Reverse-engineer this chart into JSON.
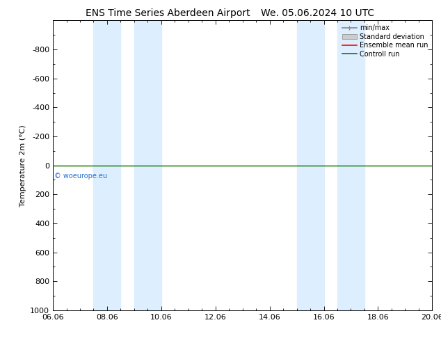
{
  "title_left": "ENS Time Series Aberdeen Airport",
  "title_right": "We. 05.06.2024 10 UTC",
  "ylabel": "Temperature 2m (°C)",
  "ylim_bottom": -1000,
  "ylim_top": 1000,
  "yticks": [
    -800,
    -600,
    -400,
    -200,
    0,
    200,
    400,
    600,
    800,
    1000
  ],
  "xtick_labels": [
    "06.06",
    "08.06",
    "10.06",
    "12.06",
    "14.06",
    "16.06",
    "18.06",
    "20.06"
  ],
  "xtick_positions": [
    0,
    2,
    4,
    6,
    8,
    10,
    12,
    14
  ],
  "blue_bands": [
    [
      1.5,
      2.5
    ],
    [
      3.0,
      4.0
    ],
    [
      9.0,
      10.0
    ],
    [
      10.5,
      11.5
    ]
  ],
  "green_line_y": 0,
  "red_line_y": 0,
  "watermark": "© woeurope.eu",
  "legend_labels": [
    "min/max",
    "Standard deviation",
    "Ensemble mean run",
    "Controll run"
  ],
  "bg_color": "#ffffff",
  "plot_bg": "#ffffff",
  "green_line_color": "#008000",
  "red_line_color": "#ff0000",
  "band_color": "#ddeeff",
  "title_fontsize": 10,
  "axis_fontsize": 8,
  "tick_fontsize": 8
}
